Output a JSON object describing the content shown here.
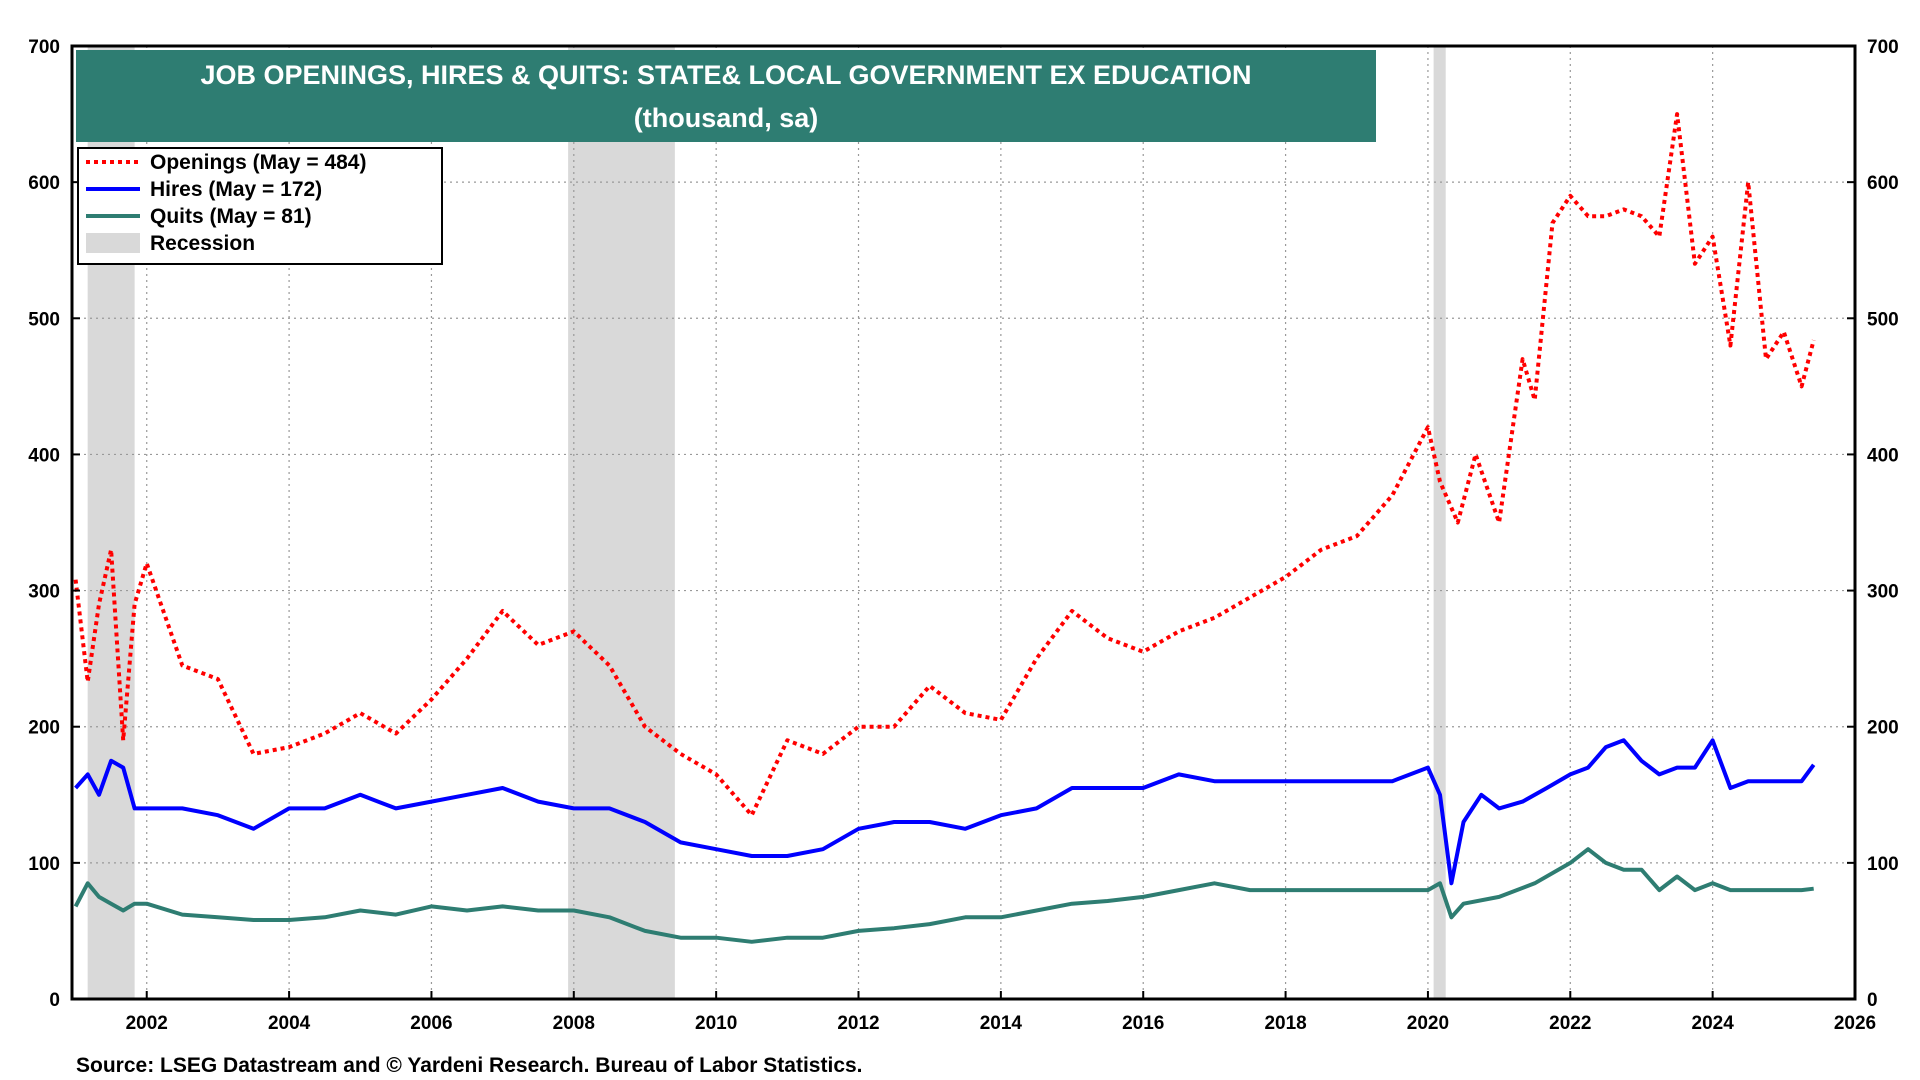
{
  "chart_data": {
    "type": "line",
    "title": "JOB OPENINGS, HIRES & QUITS: STATE& LOCAL GOVERNMENT EX EDUCATION",
    "subtitle": "(thousand, sa)",
    "source": "Source: LSEG Datastream and © Yardeni Research. Bureau of Labor Statistics.",
    "xlim": [
      2000.95,
      2026
    ],
    "ylim": [
      0,
      700
    ],
    "x_ticks": [
      "2002",
      "2004",
      "2006",
      "2008",
      "2010",
      "2012",
      "2014",
      "2016",
      "2018",
      "2020",
      "2022",
      "2024",
      "2026"
    ],
    "y_ticks": [
      "0",
      "100",
      "200",
      "300",
      "400",
      "500",
      "600",
      "700"
    ],
    "grid": true,
    "legend_position": "top-left",
    "recessions": [
      [
        2001.17,
        2001.83
      ],
      [
        2007.92,
        2009.42
      ],
      [
        2020.08,
        2020.25
      ]
    ],
    "series": [
      {
        "name": "Openings (May = 484)",
        "color": "#ff0000",
        "style": "dotted",
        "x": [
          2001.0,
          2001.17,
          2001.33,
          2001.5,
          2001.67,
          2001.83,
          2002.0,
          2002.5,
          2003.0,
          2003.5,
          2004.0,
          2004.5,
          2005.0,
          2005.5,
          2006.0,
          2006.5,
          2007.0,
          2007.5,
          2008.0,
          2008.5,
          2009.0,
          2009.5,
          2010.0,
          2010.5,
          2011.0,
          2011.5,
          2012.0,
          2012.5,
          2013.0,
          2013.5,
          2014.0,
          2014.5,
          2015.0,
          2015.5,
          2016.0,
          2016.5,
          2017.0,
          2017.5,
          2018.0,
          2018.5,
          2019.0,
          2019.5,
          2020.0,
          2020.17,
          2020.42,
          2020.67,
          2021.0,
          2021.33,
          2021.5,
          2021.75,
          2022.0,
          2022.25,
          2022.5,
          2022.75,
          2023.0,
          2023.25,
          2023.5,
          2023.75,
          2024.0,
          2024.25,
          2024.5,
          2024.75,
          2025.0,
          2025.25,
          2025.42
        ],
        "y": [
          308,
          233,
          290,
          330,
          190,
          290,
          320,
          245,
          235,
          180,
          185,
          195,
          210,
          195,
          220,
          250,
          285,
          260,
          270,
          245,
          200,
          180,
          165,
          135,
          190,
          180,
          200,
          200,
          230,
          210,
          205,
          250,
          285,
          265,
          255,
          270,
          280,
          295,
          310,
          330,
          340,
          370,
          420,
          380,
          350,
          400,
          350,
          470,
          440,
          570,
          590,
          575,
          575,
          580,
          575,
          560,
          650,
          540,
          560,
          480,
          600,
          470,
          490,
          450,
          484
        ]
      },
      {
        "name": "Hires (May = 172)",
        "color": "#0000ff",
        "style": "solid",
        "x": [
          2001.0,
          2001.17,
          2001.33,
          2001.5,
          2001.67,
          2001.83,
          2002.0,
          2002.5,
          2003.0,
          2003.5,
          2004.0,
          2004.5,
          2005.0,
          2005.5,
          2006.0,
          2006.5,
          2007.0,
          2007.5,
          2008.0,
          2008.5,
          2009.0,
          2009.5,
          2010.0,
          2010.5,
          2011.0,
          2011.5,
          2012.0,
          2012.5,
          2013.0,
          2013.5,
          2014.0,
          2014.5,
          2015.0,
          2015.5,
          2016.0,
          2016.5,
          2017.0,
          2017.5,
          2018.0,
          2018.5,
          2019.0,
          2019.5,
          2020.0,
          2020.17,
          2020.33,
          2020.5,
          2020.75,
          2021.0,
          2021.33,
          2021.67,
          2022.0,
          2022.25,
          2022.5,
          2022.75,
          2023.0,
          2023.25,
          2023.5,
          2023.75,
          2024.0,
          2024.25,
          2024.5,
          2024.75,
          2025.0,
          2025.25,
          2025.42
        ],
        "y": [
          155,
          165,
          150,
          175,
          170,
          140,
          140,
          140,
          135,
          125,
          140,
          140,
          150,
          140,
          145,
          150,
          155,
          145,
          140,
          140,
          130,
          115,
          110,
          105,
          105,
          110,
          125,
          130,
          130,
          125,
          135,
          140,
          155,
          155,
          155,
          165,
          160,
          160,
          160,
          160,
          160,
          160,
          170,
          150,
          85,
          130,
          150,
          140,
          145,
          155,
          165,
          170,
          185,
          190,
          175,
          165,
          170,
          170,
          190,
          155,
          160,
          160,
          160,
          160,
          172
        ]
      },
      {
        "name": "Quits (May = 81)",
        "color": "#2e7d72",
        "style": "solid",
        "x": [
          2001.0,
          2001.17,
          2001.33,
          2001.5,
          2001.67,
          2001.83,
          2002.0,
          2002.5,
          2003.0,
          2003.5,
          2004.0,
          2004.5,
          2005.0,
          2005.5,
          2006.0,
          2006.5,
          2007.0,
          2007.5,
          2008.0,
          2008.5,
          2009.0,
          2009.5,
          2010.0,
          2010.5,
          2011.0,
          2011.5,
          2012.0,
          2012.5,
          2013.0,
          2013.5,
          2014.0,
          2014.5,
          2015.0,
          2015.5,
          2016.0,
          2016.5,
          2017.0,
          2017.5,
          2018.0,
          2018.5,
          2019.0,
          2019.5,
          2020.0,
          2020.17,
          2020.33,
          2020.5,
          2021.0,
          2021.5,
          2022.0,
          2022.25,
          2022.5,
          2022.75,
          2023.0,
          2023.25,
          2023.5,
          2023.75,
          2024.0,
          2024.25,
          2024.5,
          2024.75,
          2025.0,
          2025.25,
          2025.42
        ],
        "y": [
          68,
          85,
          75,
          70,
          65,
          70,
          70,
          62,
          60,
          58,
          58,
          60,
          65,
          62,
          68,
          65,
          68,
          65,
          65,
          60,
          50,
          45,
          45,
          42,
          45,
          45,
          50,
          52,
          55,
          60,
          60,
          65,
          70,
          72,
          75,
          80,
          85,
          80,
          80,
          80,
          80,
          80,
          80,
          85,
          60,
          70,
          75,
          85,
          100,
          110,
          100,
          95,
          95,
          80,
          90,
          80,
          85,
          80,
          80,
          80,
          80,
          80,
          81
        ]
      }
    ],
    "legend_extra": "Recession"
  }
}
